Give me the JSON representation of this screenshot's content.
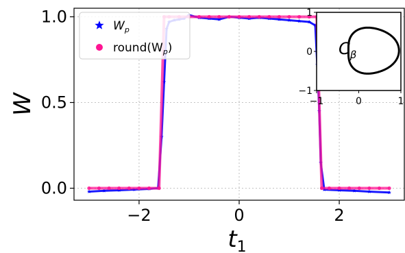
{
  "chart_data": [
    {
      "type": "scatter",
      "xlabel": "t",
      "xlabel_sub": "1",
      "ylabel": "W",
      "xlim": [
        -3.3,
        3.3
      ],
      "ylim": [
        -0.07,
        1.05
      ],
      "xticks": [
        -2,
        0,
        2
      ],
      "xtick_labels": [
        "−2",
        "0",
        "2"
      ],
      "yticks": [
        0.0,
        0.5,
        1.0
      ],
      "ytick_labels": [
        "0.0",
        "0.5",
        "1.0"
      ],
      "grid": true,
      "legend_position": "upper-left",
      "series": [
        {
          "name": "W",
          "name_sub": "p",
          "marker": "star",
          "color": "#0000ff",
          "x": [
            -3.0,
            -2.7,
            -2.4,
            -2.1,
            -1.8,
            -1.62,
            -1.55,
            -1.5,
            -1.45,
            -1.4,
            -1.3,
            -1.2,
            -1.1,
            -1.0,
            -0.8,
            -0.6,
            -0.4,
            -0.2,
            0.0,
            0.2,
            0.4,
            0.6,
            0.8,
            1.0,
            1.2,
            1.4,
            1.52,
            1.56,
            1.6,
            1.63,
            1.7,
            2.0,
            2.3,
            2.6,
            3.0
          ],
          "y": [
            -0.02,
            -0.015,
            -0.012,
            -0.008,
            -0.004,
            0.0,
            0.3,
            0.62,
            0.93,
            0.97,
            0.98,
            0.985,
            0.99,
            1.01,
            0.995,
            0.99,
            0.985,
            1.0,
            0.995,
            0.99,
            0.995,
            0.99,
            0.985,
            0.98,
            0.975,
            0.97,
            0.95,
            0.72,
            0.45,
            0.15,
            -0.008,
            -0.012,
            -0.015,
            -0.02,
            -0.025
          ]
        },
        {
          "name": "round(W",
          "name_sub": "p",
          "name_suffix": ")",
          "marker": "circle",
          "color": "#ff1493",
          "x": [
            -3.0,
            -2.8,
            -2.6,
            -2.4,
            -2.2,
            -2.0,
            -1.8,
            -1.6,
            -1.5,
            -1.4,
            -1.2,
            -1.0,
            -0.8,
            -0.6,
            -0.4,
            -0.2,
            0.0,
            0.2,
            0.4,
            0.6,
            0.8,
            1.0,
            1.2,
            1.4,
            1.55,
            1.65,
            1.8,
            2.0,
            2.2,
            2.4,
            2.6,
            2.8,
            3.0
          ],
          "y": [
            0,
            0,
            0,
            0,
            0,
            0,
            0,
            0,
            1,
            1,
            1,
            1,
            1,
            1,
            1,
            1,
            1,
            1,
            1,
            1,
            1,
            1,
            1,
            1,
            1,
            0,
            0,
            0,
            0,
            0,
            0,
            0,
            0
          ]
        }
      ]
    },
    {
      "type": "line",
      "annotation": "C",
      "annotation_sub": "β",
      "xlim": [
        -1,
        1
      ],
      "ylim": [
        -1,
        1
      ],
      "xticks": [
        -1,
        0,
        1
      ],
      "xtick_labels": [
        "−1",
        "0",
        "1"
      ],
      "yticks": [
        -1,
        0,
        1
      ],
      "ytick_labels": [
        "−1",
        "0",
        "1"
      ],
      "series": [
        {
          "color": "#000000",
          "shape": "closed-curve"
        }
      ]
    }
  ]
}
